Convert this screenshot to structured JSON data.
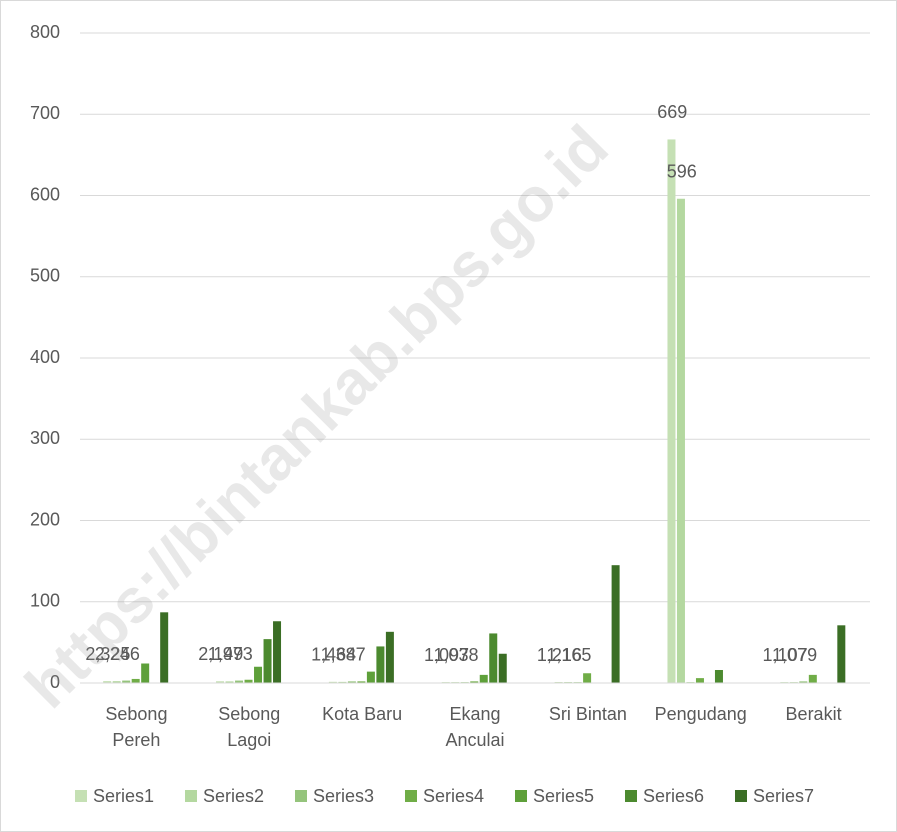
{
  "chart_data": {
    "type": "bar",
    "watermark": "https://bintankab.bps.go.id",
    "categories": [
      "Sebong Pereh",
      "Sebong Lagoi",
      "Kota Baru",
      "Ekang Anculai",
      "Sri Bintan",
      "Pengudang",
      "Berakit"
    ],
    "series": [
      {
        "name": "Series1",
        "color": "#c5e0b4",
        "values": [
          2.325,
          2.149,
          1.464,
          1.097,
          1.216,
          669,
          1.107
        ],
        "value_labels": [
          "2,325",
          "2,149",
          "1,464",
          "1,097",
          "1,216",
          "669",
          "1,107"
        ]
      },
      {
        "name": "Series2",
        "color": "#b4d8a0",
        "values": [
          2.246,
          1.973,
          1.387,
          1.038,
          1.165,
          596,
          1.079
        ],
        "value_labels": [
          "2,246",
          "1,973",
          "1,387",
          "1,038",
          "1,165",
          "596",
          "1,079"
        ]
      },
      {
        "name": "Series3",
        "color": "#95c47c",
        "values": [
          3,
          3,
          2,
          1,
          1,
          1,
          2
        ]
      },
      {
        "name": "Series4",
        "color": "#70ad47",
        "values": [
          5,
          4,
          2,
          2,
          12,
          6,
          10
        ]
      },
      {
        "name": "Series5",
        "color": "#5ea03a",
        "values": [
          24,
          20,
          14,
          10,
          0,
          0,
          0
        ]
      },
      {
        "name": "Series6",
        "color": "#4c8a2f",
        "values": [
          0,
          54,
          45,
          61,
          0,
          16,
          0
        ]
      },
      {
        "name": "Series7",
        "color": "#3b6e25",
        "values": [
          87,
          76,
          63,
          36,
          145,
          0,
          71
        ]
      }
    ],
    "ylim": [
      0,
      800
    ],
    "yticks": [
      0,
      100,
      200,
      300,
      400,
      500,
      600,
      700,
      800
    ],
    "grid": true,
    "legend": "bottom"
  }
}
